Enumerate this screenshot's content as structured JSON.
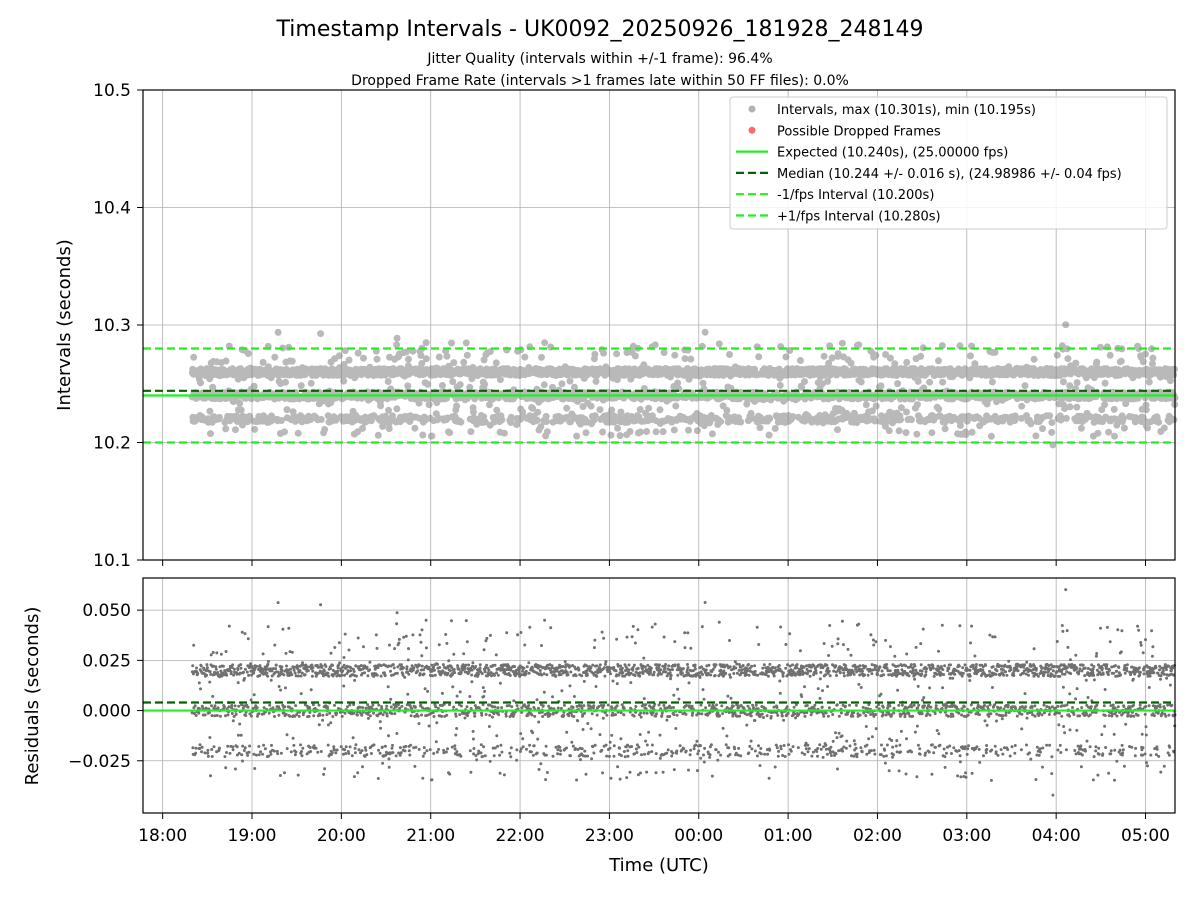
{
  "chart_data": {
    "type": "scatter",
    "title": "Timestamp Intervals - UK0092_20250926_181928_248149",
    "subtitle_lines": [
      "Jitter Quality (intervals within +/-1 frame): 96.4%",
      "Dropped Frame Rate (intervals >1 frames late within 50 FF files): 0.0%"
    ],
    "xlabel": "Time (UTC)",
    "x_ticks": [
      "18:00",
      "19:00",
      "20:00",
      "21:00",
      "22:00",
      "23:00",
      "00:00",
      "01:00",
      "02:00",
      "03:00",
      "04:00",
      "05:00"
    ],
    "x_range_hours": [
      17.78,
      29.33
    ],
    "data_x_range_hours": [
      18.33,
      29.33
    ],
    "top_panel": {
      "ylabel": "Intervals (seconds)",
      "ylim": [
        10.1,
        10.5
      ],
      "y_ticks": [
        "10.1",
        "10.2",
        "10.3",
        "10.4",
        "10.5"
      ],
      "grid": true,
      "legend_position": "top-right",
      "series": [
        {
          "name": "Intervals, max (10.301s), min (10.195s)",
          "kind": "scatter",
          "color": "#808080",
          "min": 10.195,
          "max": 10.301,
          "levels": [
            10.22,
            10.24,
            10.26
          ],
          "n_points": 3866
        },
        {
          "name": "Possible Dropped Frames",
          "kind": "scatter",
          "color": "#ff4d4d",
          "count": 0
        },
        {
          "name": "Expected (10.240s), (25.00000 fps)",
          "kind": "hline",
          "y": 10.24,
          "color": "#22ee22",
          "style": "solid"
        },
        {
          "name": "Median (10.244 +/- 0.016 s), (24.98986 +/- 0.04 fps)",
          "kind": "hline",
          "y": 10.244,
          "color": "#006400",
          "style": "dashed"
        },
        {
          "name": "-1/fps Interval (10.200s)",
          "kind": "hline",
          "y": 10.2,
          "color": "#22ee22",
          "style": "dashed"
        },
        {
          "name": "+1/fps Interval (10.280s)",
          "kind": "hline",
          "y": 10.28,
          "color": "#22ee22",
          "style": "dashed"
        }
      ]
    },
    "bottom_panel": {
      "ylabel": "Residuals (seconds)",
      "ylim": [
        -0.051,
        0.066
      ],
      "y_ticks": [
        -0.025,
        0.0,
        0.025,
        0.05
      ],
      "y_tick_labels": [
        "−0.025",
        "0.000",
        "0.025",
        "0.050"
      ],
      "grid": true,
      "series": [
        {
          "name": "Residuals",
          "kind": "scatter",
          "color": "#707070",
          "min": -0.045,
          "max": 0.061,
          "levels": [
            -0.02,
            0.0,
            0.02
          ]
        },
        {
          "name": "Expected",
          "kind": "hline",
          "y": 0.0,
          "color": "#22ee22",
          "style": "solid"
        },
        {
          "name": "Median",
          "kind": "hline",
          "y": 0.004,
          "color": "#006400",
          "style": "dashed"
        }
      ]
    }
  }
}
